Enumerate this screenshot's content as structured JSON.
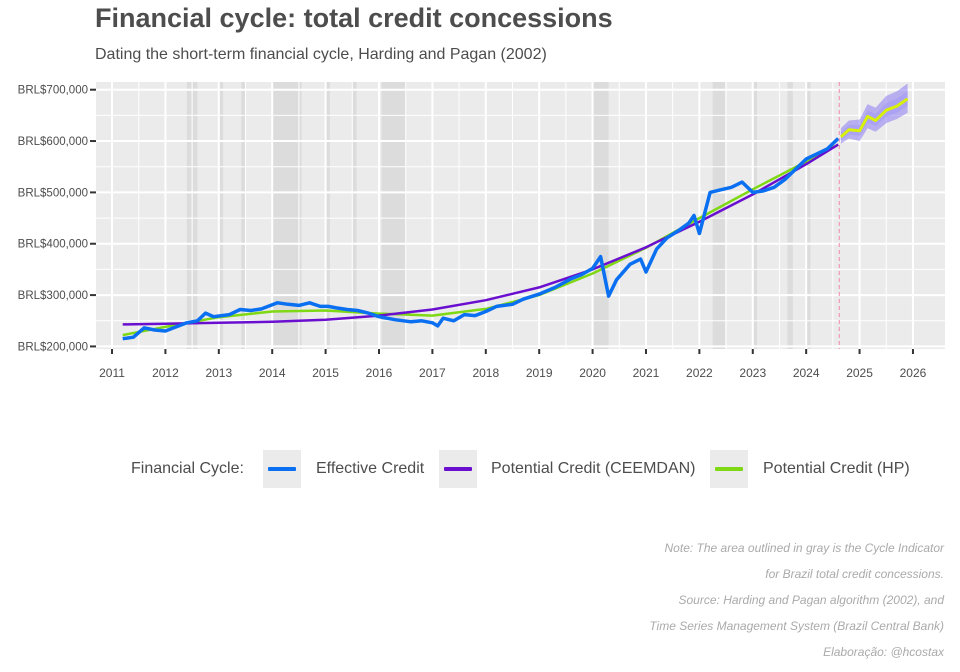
{
  "title": "Financial cycle: total credit concessions",
  "subtitle": "Dating the short-term financial cycle, Harding and Pagan (2002)",
  "legend": {
    "title": "Financial Cycle:",
    "items": [
      {
        "label": "Effective Credit",
        "color": "#0a6ff0"
      },
      {
        "label": "Potential Credit (CEEMDAN)",
        "color": "#6a0fd0"
      },
      {
        "label": "Potential Credit (HP)",
        "color": "#7fd814"
      }
    ]
  },
  "captions": [
    "Note: The area outlined in gray is the Cycle Indicator",
    "for Brazil total credit concessions.",
    "Source: Harding and Pagan algorithm (2002), and",
    "Time Series Management System (Brazil Central Bank)",
    "Elaboração: @hcostax"
  ],
  "chart_data": {
    "type": "line",
    "x_unit": "year",
    "xlim": [
      2010.7,
      2026.6
    ],
    "ylim": [
      195000,
      715000
    ],
    "x_ticks": [
      2011,
      2012,
      2013,
      2014,
      2015,
      2016,
      2017,
      2018,
      2019,
      2020,
      2021,
      2022,
      2023,
      2024,
      2025,
      2026
    ],
    "x_tick_labels": [
      "2011",
      "2012",
      "2013",
      "2014",
      "2015",
      "2016",
      "2017",
      "2018",
      "2019",
      "2020",
      "2021",
      "2022",
      "2023",
      "2024",
      "2025",
      "2026"
    ],
    "y_ticks": [
      200000,
      300000,
      400000,
      500000,
      600000,
      700000
    ],
    "y_tick_labels": [
      "BRL$200,000",
      "BRL$300,000",
      "BRL$400,000",
      "BRL$500,000",
      "BRL$600,000",
      "BRL$700,000"
    ],
    "grid": true,
    "legend_position": "bottom",
    "forecast_start": 2024.62,
    "shaded_periods": [
      [
        2012.4,
        2012.6
      ],
      [
        2013.0,
        2013.08
      ],
      [
        2013.42,
        2013.5
      ],
      [
        2014.0,
        2014.55
      ],
      [
        2015.0,
        2015.08
      ],
      [
        2015.5,
        2015.58
      ],
      [
        2016.05,
        2016.5
      ],
      [
        2020.0,
        2020.3
      ],
      [
        2022.25,
        2022.48
      ],
      [
        2023.0,
        2023.08
      ],
      [
        2023.65,
        2023.75
      ],
      [
        2024.0,
        2024.08
      ]
    ],
    "series": [
      {
        "name": "Effective Credit",
        "x": [
          2011.2,
          2011.4,
          2011.6,
          2011.8,
          2012.0,
          2012.2,
          2012.4,
          2012.6,
          2012.75,
          2012.9,
          2013.2,
          2013.4,
          2013.6,
          2013.8,
          2014.1,
          2014.3,
          2014.5,
          2014.7,
          2014.9,
          2015.05,
          2015.2,
          2015.4,
          2015.6,
          2015.8,
          2016.0,
          2016.3,
          2016.6,
          2016.8,
          2017.0,
          2017.1,
          2017.2,
          2017.4,
          2017.6,
          2017.8,
          2018.0,
          2018.2,
          2018.5,
          2018.7,
          2019.0,
          2019.3,
          2019.6,
          2019.8,
          2020.0,
          2020.15,
          2020.3,
          2020.45,
          2020.7,
          2020.9,
          2021.0,
          2021.2,
          2021.4,
          2021.6,
          2021.8,
          2021.9,
          2022.0,
          2022.2,
          2022.4,
          2022.6,
          2022.7,
          2022.8,
          2023.0,
          2023.2,
          2023.4,
          2023.6,
          2023.8,
          2024.0,
          2024.2,
          2024.4,
          2024.6
        ],
        "y": [
          215000,
          218000,
          236000,
          232000,
          230000,
          238000,
          246000,
          250000,
          265000,
          258000,
          262000,
          272000,
          270000,
          273000,
          285000,
          282000,
          280000,
          285000,
          278000,
          278000,
          275000,
          272000,
          270000,
          265000,
          258000,
          252000,
          248000,
          250000,
          246000,
          240000,
          255000,
          250000,
          262000,
          260000,
          268000,
          278000,
          282000,
          292000,
          302000,
          315000,
          332000,
          340000,
          352000,
          375000,
          298000,
          330000,
          360000,
          370000,
          345000,
          390000,
          412000,
          425000,
          440000,
          455000,
          420000,
          500000,
          505000,
          510000,
          515000,
          520000,
          500000,
          503000,
          510000,
          525000,
          545000,
          565000,
          575000,
          585000,
          605000
        ]
      },
      {
        "name": "Potential Credit (CEEMDAN)",
        "x": [
          2011.2,
          2012.0,
          2013.0,
          2014.0,
          2015.0,
          2016.0,
          2017.0,
          2018.0,
          2019.0,
          2020.0,
          2021.0,
          2022.0,
          2023.0,
          2024.0,
          2024.6
        ],
        "y": [
          243000,
          244000,
          246000,
          248000,
          252000,
          260000,
          272000,
          290000,
          315000,
          350000,
          393000,
          443000,
          496000,
          555000,
          593000
        ]
      },
      {
        "name": "Potential Credit (HP)",
        "x": [
          2011.2,
          2012.0,
          2013.0,
          2014.0,
          2015.0,
          2016.0,
          2017.0,
          2018.0,
          2019.0,
          2020.0,
          2021.0,
          2022.0,
          2023.0,
          2024.0,
          2024.6
        ],
        "y": [
          222000,
          238000,
          257000,
          268000,
          270000,
          264000,
          260000,
          273000,
          300000,
          342000,
          392000,
          450000,
          506000,
          560000,
          593000
        ]
      },
      {
        "name": "Forecast",
        "x": [
          2024.65,
          2024.8,
          2025.0,
          2025.15,
          2025.3,
          2025.5,
          2025.7,
          2025.9
        ],
        "y": [
          608000,
          622000,
          620000,
          648000,
          640000,
          660000,
          668000,
          682000
        ],
        "band_lower": [
          595000,
          605000,
          600000,
          625000,
          618000,
          635000,
          643000,
          655000
        ],
        "band_upper": [
          625000,
          640000,
          642000,
          672000,
          665000,
          688000,
          697000,
          712000
        ]
      }
    ]
  }
}
